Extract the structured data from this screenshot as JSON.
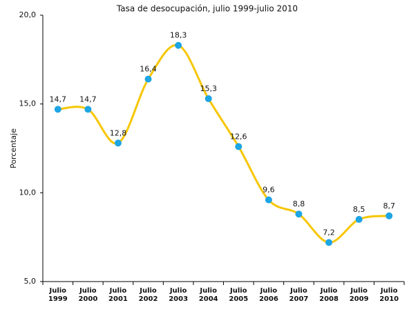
{
  "chart_data": {
    "type": "line",
    "title": "Tasa de desocupación, julio 1999-julio 2010",
    "ylabel": "Porcentaje",
    "categories": [
      "Julio 1999",
      "Julio 2000",
      "Julio 2001",
      "Julio 2002",
      "Julio 2003",
      "Julio 2004",
      "Julio 2005",
      "Julio 2006",
      "Julio 2007",
      "Julio 2008",
      "Julio 2009",
      "Julio 2010"
    ],
    "values": [
      14.7,
      14.7,
      12.8,
      16.4,
      18.3,
      15.3,
      12.6,
      9.6,
      8.8,
      7.2,
      8.5,
      8.7
    ],
    "value_labels": [
      "14,7",
      "14,7",
      "12,8",
      "16,4",
      "18,3",
      "15,3",
      "12,6",
      "9,6",
      "8,8",
      "7,2",
      "8,5",
      "8,7"
    ],
    "color": "#f7c600",
    "marker_color": "#1ea5e3",
    "ylim": [
      5,
      20
    ],
    "yticks": [
      {
        "value": 5,
        "label": "5,0"
      },
      {
        "value": 10,
        "label": "10,0"
      },
      {
        "value": 15,
        "label": "15,0"
      },
      {
        "value": 20,
        "label": "20,0"
      }
    ],
    "grid": false
  }
}
